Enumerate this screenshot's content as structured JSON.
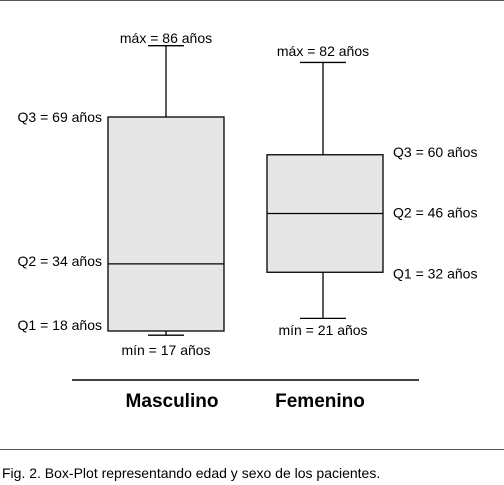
{
  "caption": "Fig. 2. Box-Plot representando edad y sexo de los pacientes.",
  "chart_data": {
    "type": "boxplot",
    "categories": [
      "Masculino",
      "Femenino"
    ],
    "boxes": [
      {
        "category": "Masculino",
        "min": 17,
        "q1": 18,
        "median": 34,
        "q3": 69,
        "max": 86,
        "labels": {
          "max": "máx = 86 años",
          "q3": "Q3 = 69 años",
          "median": "Q2 = 34 años",
          "q1": "Q1 = 18 años",
          "min": "mín = 17 años"
        }
      },
      {
        "category": "Femenino",
        "min": 21,
        "q1": 32,
        "median": 46,
        "q3": 60,
        "max": 82,
        "labels": {
          "max": "máx = 82 años",
          "q3": "Q3 = 60 años",
          "median": "Q2 = 46 años",
          "q1": "Q1 = 32 años",
          "min": "mín = 21 años"
        }
      }
    ],
    "box_fill": "#e6e6e6",
    "line_color": "#000000",
    "grid": false,
    "legend": "none"
  }
}
